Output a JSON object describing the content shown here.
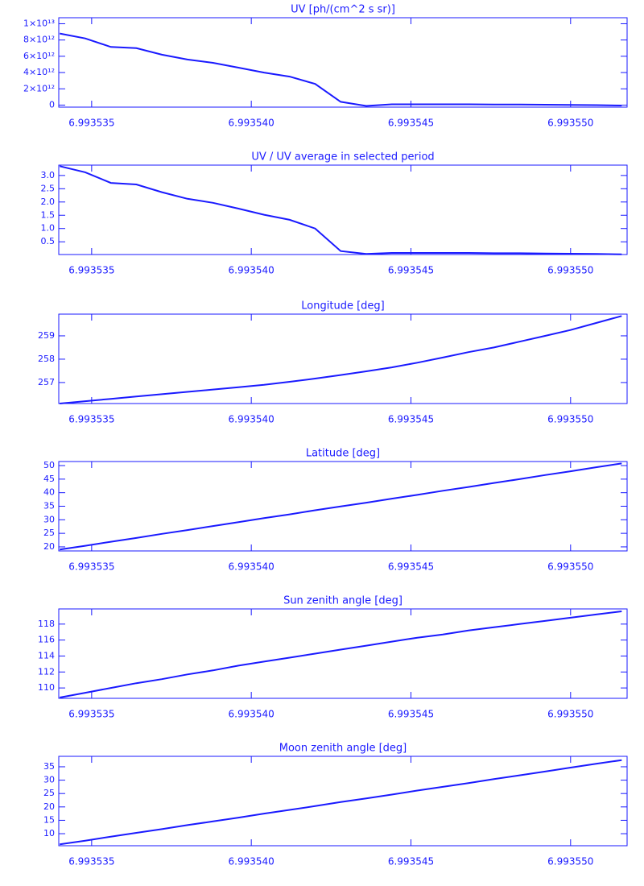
{
  "chart_data": [
    {
      "type": "line",
      "title": "UV [ph/(cm^2 s sr)]",
      "x": [
        6.993534,
        6.9935348,
        6.9935356,
        6.9935364,
        6.9935372,
        6.993538,
        6.9935388,
        6.9935396,
        6.9935404,
        6.9935412,
        6.993542,
        6.9935428,
        6.9935436,
        6.9935444,
        6.9935452,
        6.993546,
        6.9935468,
        6.9935476,
        6.9935484,
        6.9935492,
        6.99355,
        6.9935508,
        6.9935516
      ],
      "values": [
        8800000000000,
        8200000000000,
        7150000000000,
        7000000000000,
        6200000000000,
        5600000000000,
        5200000000000,
        4600000000000,
        4000000000000,
        3500000000000,
        2600000000000,
        400000000000,
        -100000000000,
        100000000000,
        100000000000,
        100000000000,
        100000000000,
        80000000000,
        70000000000,
        50000000000,
        30000000000,
        0,
        -50000000000
      ],
      "color": "#1a1aff",
      "xlim": [
        6.99353397,
        6.99355177
      ],
      "xticks": [
        6.993535,
        {
          "value": 6.99354,
          "label": "6.993540"
        },
        6.993545,
        {
          "value": 6.99355,
          "label": "6.993550"
        }
      ],
      "ylim": [
        -250000000000,
        10740000000000
      ],
      "yticks": [
        0,
        {
          "value": 2000000000000,
          "label": "2×10¹²"
        },
        {
          "value": 4000000000000,
          "label": "4×10¹²"
        },
        {
          "value": 6000000000000,
          "label": "6×10¹²"
        },
        {
          "value": 8000000000000,
          "label": "8×10¹²"
        },
        {
          "value": 10000000000000,
          "label": "1×10¹³"
        }
      ]
    },
    {
      "type": "line",
      "title": "UV / UV average in selected period",
      "x": [
        6.993534,
        6.9935348,
        6.9935356,
        6.9935364,
        6.9935372,
        6.993538,
        6.9935388,
        6.9935396,
        6.9935404,
        6.9935412,
        6.993542,
        6.9935428,
        6.9935436,
        6.9935444,
        6.9935452,
        6.993546,
        6.9935468,
        6.9935476,
        6.9935484,
        6.9935492,
        6.99355,
        6.9935508,
        6.9935516
      ],
      "values": [
        3.35,
        3.12,
        2.72,
        2.66,
        2.37,
        2.12,
        1.97,
        1.75,
        1.52,
        1.33,
        1.0,
        0.15,
        0.04,
        0.08,
        0.08,
        0.08,
        0.08,
        0.07,
        0.07,
        0.06,
        0.05,
        0.04,
        0.03
      ],
      "color": "#1a1aff",
      "xlim": [
        6.99353397,
        6.99355177
      ],
      "xticks": [
        6.993535,
        {
          "value": 6.99354,
          "label": "6.993540"
        },
        6.993545,
        {
          "value": 6.99355,
          "label": "6.993550"
        }
      ],
      "ylim": [
        0.02,
        3.39
      ],
      "yticks": [
        0.5,
        {
          "value": 1,
          "label": "1.0"
        },
        1.5,
        {
          "value": 2,
          "label": "2.0"
        },
        2.5,
        {
          "value": 3,
          "label": "3.0"
        }
      ]
    },
    {
      "type": "line",
      "title": "Longitude [deg]",
      "x": [
        6.993534,
        6.9935348,
        6.9935356,
        6.9935364,
        6.9935372,
        6.993538,
        6.9935388,
        6.9935396,
        6.9935404,
        6.9935412,
        6.993542,
        6.9935428,
        6.9935436,
        6.9935444,
        6.9935452,
        6.993546,
        6.9935468,
        6.9935476,
        6.9935484,
        6.9935492,
        6.99355,
        6.9935508,
        6.9935516
      ],
      "values": [
        256.1,
        256.2,
        256.3,
        256.4,
        256.5,
        256.6,
        256.7,
        256.8,
        256.9,
        257.03,
        257.17,
        257.32,
        257.48,
        257.65,
        257.85,
        258.07,
        258.3,
        258.5,
        258.75,
        259.0,
        259.25,
        259.55,
        259.85
      ],
      "color": "#1a1aff",
      "xlim": [
        6.99353397,
        6.99355177
      ],
      "xticks": [
        6.993535,
        {
          "value": 6.99354,
          "label": "6.993540"
        },
        6.993545,
        {
          "value": 6.99355,
          "label": "6.993550"
        }
      ],
      "ylim": [
        256.1,
        259.93
      ],
      "yticks": [
        257,
        258,
        259
      ]
    },
    {
      "type": "line",
      "title": "Latitude [deg]",
      "x": [
        6.993534,
        6.9935348,
        6.9935356,
        6.9935364,
        6.9935372,
        6.993538,
        6.9935388,
        6.9935396,
        6.9935404,
        6.9935412,
        6.993542,
        6.9935428,
        6.9935436,
        6.9935444,
        6.9935452,
        6.993546,
        6.9935468,
        6.9935476,
        6.9935484,
        6.9935492,
        6.99355,
        6.9935508,
        6.9935516
      ],
      "values": [
        19.0,
        20.4,
        21.9,
        23.3,
        24.8,
        26.2,
        27.7,
        29.1,
        30.6,
        32.0,
        33.5,
        34.9,
        36.3,
        37.8,
        39.2,
        40.7,
        42.1,
        43.6,
        45.0,
        46.5,
        47.9,
        49.4,
        50.8
      ],
      "color": "#1a1aff",
      "xlim": [
        6.99353397,
        6.99355177
      ],
      "xticks": [
        6.993535,
        {
          "value": 6.99354,
          "label": "6.993540"
        },
        6.993545,
        {
          "value": 6.99355,
          "label": "6.993550"
        }
      ],
      "ylim": [
        18.5,
        51.5
      ],
      "yticks": [
        20,
        25,
        30,
        35,
        40,
        45,
        50
      ]
    },
    {
      "type": "line",
      "title": "Sun zenith angle [deg]",
      "x": [
        6.993534,
        6.9935348,
        6.9935356,
        6.9935364,
        6.9935372,
        6.993538,
        6.9935388,
        6.9935396,
        6.9935404,
        6.9935412,
        6.993542,
        6.9935428,
        6.9935436,
        6.9935444,
        6.9935452,
        6.993546,
        6.9935468,
        6.9935476,
        6.9935484,
        6.9935492,
        6.99355,
        6.9935508,
        6.9935516
      ],
      "values": [
        108.8,
        109.4,
        110.0,
        110.6,
        111.1,
        111.7,
        112.2,
        112.8,
        113.3,
        113.8,
        114.3,
        114.8,
        115.3,
        115.8,
        116.3,
        116.7,
        117.2,
        117.6,
        118.0,
        118.4,
        118.8,
        119.2,
        119.6
      ],
      "color": "#1a1aff",
      "xlim": [
        6.99353397,
        6.99355177
      ],
      "xticks": [
        6.993535,
        {
          "value": 6.99354,
          "label": "6.993540"
        },
        6.993545,
        {
          "value": 6.99355,
          "label": "6.993550"
        }
      ],
      "ylim": [
        108.7,
        119.9
      ],
      "yticks": [
        110,
        112,
        114,
        116,
        118
      ]
    },
    {
      "type": "line",
      "title": "Moon zenith angle [deg]",
      "x": [
        6.993534,
        6.9935348,
        6.9935356,
        6.9935364,
        6.9935372,
        6.993538,
        6.9935388,
        6.9935396,
        6.9935404,
        6.9935412,
        6.993542,
        6.9935428,
        6.9935436,
        6.9935444,
        6.9935452,
        6.993546,
        6.9935468,
        6.9935476,
        6.9935484,
        6.9935492,
        6.99355,
        6.9935508,
        6.9935516
      ],
      "values": [
        6.0,
        7.4,
        8.9,
        10.3,
        11.7,
        13.2,
        14.6,
        16.0,
        17.5,
        18.9,
        20.3,
        21.8,
        23.2,
        24.6,
        26.1,
        27.5,
        28.9,
        30.4,
        31.8,
        33.2,
        34.7,
        36.1,
        37.5
      ],
      "color": "#1a1aff",
      "xlim": [
        6.99353397,
        6.99355177
      ],
      "xticks": [
        6.993535,
        {
          "value": 6.99354,
          "label": "6.993540"
        },
        6.993545,
        {
          "value": 6.99355,
          "label": "6.993550"
        }
      ],
      "ylim": [
        5.5,
        38.9
      ],
      "yticks": [
        10,
        15,
        20,
        25,
        30,
        35
      ]
    }
  ]
}
